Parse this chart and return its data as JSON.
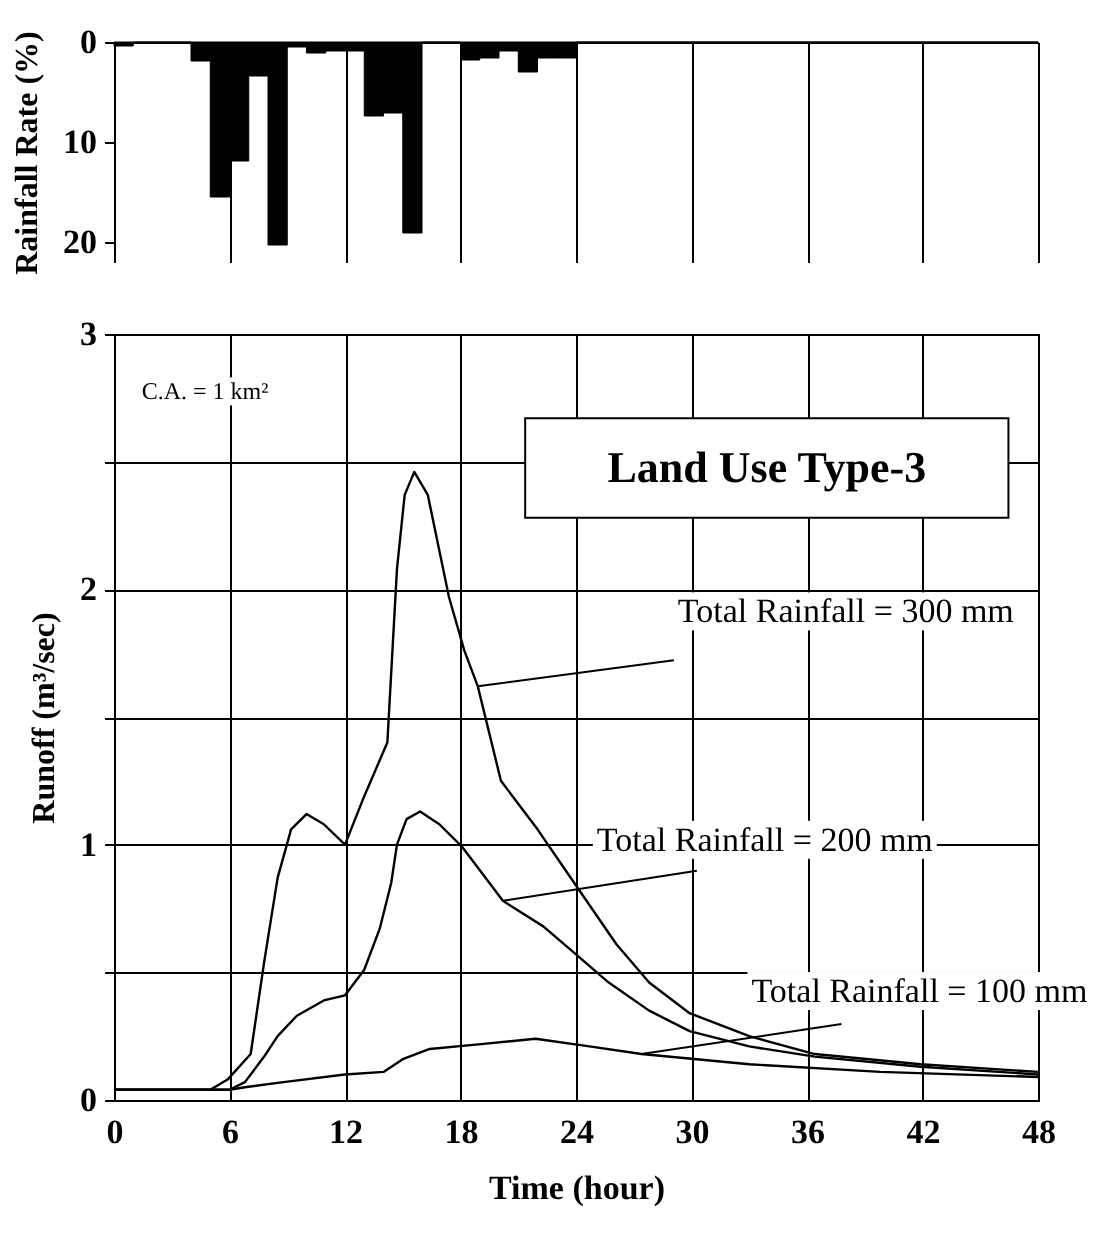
{
  "chart_data": [
    {
      "type": "histogram",
      "ylabel": "Rainfall Rate (%)",
      "color": "#000000",
      "bins": [
        0,
        1,
        2,
        3,
        4,
        5,
        6,
        7,
        8,
        9,
        10,
        11,
        12,
        13,
        14,
        15,
        16,
        17,
        18,
        19,
        20,
        21,
        22,
        23,
        24,
        25,
        26,
        27,
        28,
        29,
        30,
        31,
        32,
        33,
        34,
        35,
        36,
        37,
        38,
        39,
        40,
        41,
        42,
        43,
        44,
        45,
        46,
        47,
        48
      ],
      "values": [
        0.4,
        0,
        0,
        0,
        1.9,
        15.5,
        11.9,
        3.4,
        20.3,
        0.5,
        1.1,
        0.9,
        0.9,
        7.4,
        7.1,
        19.1,
        0,
        0,
        1.8,
        1.6,
        0.9,
        3.0,
        1.6,
        1.6,
        0,
        0,
        0,
        0,
        0,
        0,
        0,
        0,
        0,
        0,
        0,
        0,
        0,
        0,
        0,
        0,
        0,
        0,
        0,
        0,
        0,
        0,
        0,
        0
      ],
      "xlim": [
        0,
        48
      ],
      "xticks": [
        0,
        6,
        12,
        18,
        24,
        30,
        36,
        42,
        48
      ],
      "ylim": [
        22,
        0
      ],
      "yticks": [
        0,
        10,
        20
      ],
      "grid": "x",
      "tick_labels": "y"
    },
    {
      "type": "line",
      "title": "Land Use Type-3",
      "xlabel": "Time (hour)",
      "ylabel": "Runoff (m³/sec)",
      "marker": "none",
      "line_style": "solid",
      "grid": true,
      "xlim": [
        0,
        48
      ],
      "xticks": [
        0,
        6,
        12,
        18,
        24,
        30,
        36,
        42,
        48
      ],
      "ylim": [
        0,
        3
      ],
      "yticks": [
        0,
        {
          "value": 0.5,
          "label": null
        },
        1,
        {
          "value": 1.5,
          "label": null
        },
        2,
        {
          "value": 2.5,
          "label": null
        },
        3
      ],
      "series": [
        {
          "color": "#000000",
          "x": [
            0,
            5,
            5.9,
            7.1,
            7.8,
            8.5,
            9.2,
            10,
            10.9,
            12,
            13,
            14.2,
            14.7,
            15.1,
            15.6,
            16.3,
            17.4,
            18.2,
            18.9,
            20.1,
            22,
            24,
            26.1,
            27.8,
            29.9,
            33,
            36.4,
            41.9,
            48
          ],
          "values": [
            0.04,
            0.04,
            0.08,
            0.18,
            0.54,
            0.87,
            1.06,
            1.12,
            1.08,
            1.0,
            1.19,
            1.4,
            2.08,
            2.37,
            2.46,
            2.37,
            1.97,
            1.76,
            1.62,
            1.25,
            1.06,
            0.84,
            0.61,
            0.46,
            0.34,
            0.25,
            0.18,
            0.14,
            0.11
          ]
        },
        {
          "color": "#000000",
          "x": [
            0,
            6,
            6.8,
            7.8,
            8.5,
            9.5,
            10.9,
            12,
            13,
            13.8,
            14.4,
            14.7,
            15.2,
            15.9,
            16.9,
            18.1,
            19.2,
            20.2,
            22.3,
            24,
            25.7,
            27.8,
            29.9,
            33,
            36.4,
            41.9,
            48
          ],
          "values": [
            0.04,
            0.04,
            0.07,
            0.17,
            0.25,
            0.33,
            0.39,
            0.41,
            0.51,
            0.67,
            0.85,
            1.0,
            1.1,
            1.13,
            1.08,
            0.99,
            0.88,
            0.78,
            0.68,
            0.57,
            0.46,
            0.35,
            0.27,
            0.21,
            0.17,
            0.13,
            0.1
          ]
        },
        {
          "color": "#000000",
          "x": [
            0,
            6,
            6.8,
            8.8,
            12,
            14,
            15,
            16.4,
            19.2,
            21.9,
            24.7,
            27.4,
            33,
            39.8,
            48
          ],
          "values": [
            0.04,
            0.04,
            0.05,
            0.07,
            0.1,
            0.11,
            0.16,
            0.2,
            0.22,
            0.24,
            0.21,
            0.18,
            0.14,
            0.11,
            0.09
          ]
        }
      ],
      "annotations": [
        "C.A. = 1 km²",
        {
          "text": "Total Rainfall = 300 mm",
          "x": 18.9,
          "y": 1.62
        },
        {
          "text": "Total Rainfall = 200 mm",
          "x": 20.2,
          "y": 0.78
        },
        {
          "text": "Total Rainfall = 100 mm",
          "x": 27.4,
          "y": 0.18
        }
      ]
    }
  ]
}
